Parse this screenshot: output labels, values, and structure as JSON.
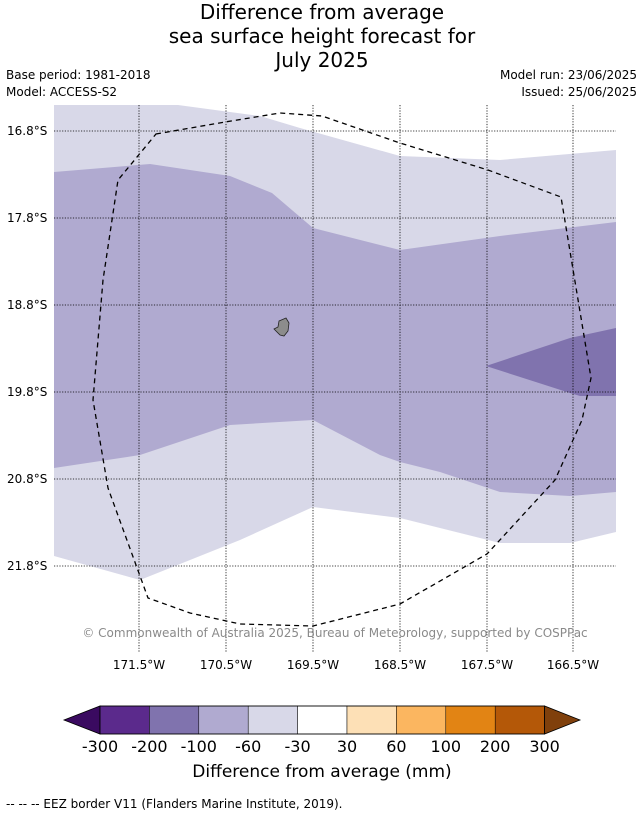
{
  "title": {
    "line1": "Difference from average",
    "line2": "sea surface height forecast for",
    "line3": "July 2025"
  },
  "meta": {
    "base_period": "Base period: 1981-2018",
    "model": "Model: ACCESS-S2",
    "model_run": "Model run: 23/06/2025",
    "issued": "Issued: 25/06/2025"
  },
  "map": {
    "lat_labels": [
      "16.8°S",
      "17.8°S",
      "18.8°S",
      "19.8°S",
      "20.8°S",
      "21.8°S"
    ],
    "lon_labels": [
      "171.5°W",
      "170.5°W",
      "169.5°W",
      "168.5°W",
      "167.5°W",
      "166.5°W"
    ],
    "copyright": "© Commonwealth of Australia 2025, Bureau of Meteorology, supported by COSPPac",
    "zones": [
      {
        "range": "-60 to -30",
        "color": "#d8d8e8"
      },
      {
        "range": "-100 to -60",
        "color": "#b0aad0"
      },
      {
        "range": "-200 to -100",
        "color": "#8073ae"
      }
    ],
    "island_color": "#8c8c8c",
    "eez_border": "dashed"
  },
  "colorbar": {
    "label": "Difference from average (mm)",
    "ticks": [
      "-300",
      "-200",
      "-100",
      "-60",
      "-30",
      "30",
      "60",
      "100",
      "200",
      "300"
    ],
    "colors": [
      "#5b2a8c",
      "#8073ae",
      "#b0aad0",
      "#d8d8e8",
      "#ffffff",
      "#fde0b6",
      "#fbb660",
      "#e28414",
      "#b45808"
    ],
    "under_color": "#3a0a60",
    "over_color": "#80400c"
  },
  "footnote": "--  --  -- EEZ border V11 (Flanders Marine Institute, 2019)."
}
